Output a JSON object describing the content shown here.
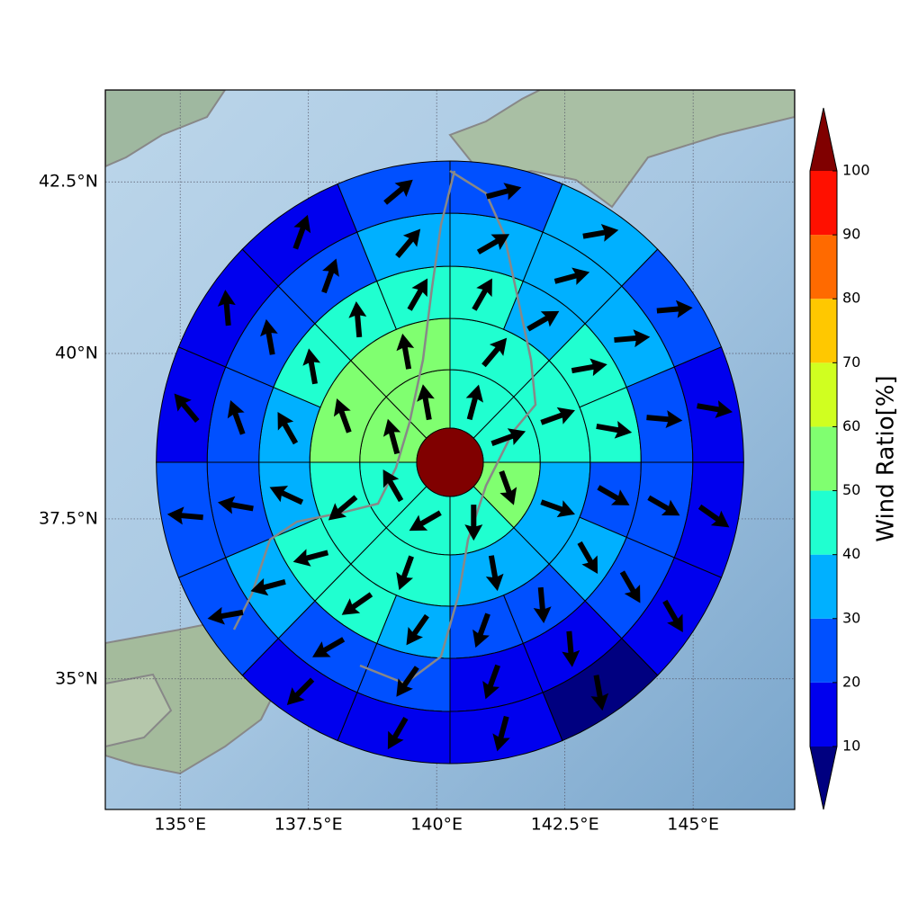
{
  "chart_data": {
    "type": "polar-grid-map",
    "projection": "mercator",
    "xlim": [
      133.54,
      146.98
    ],
    "ylim": [
      32.9,
      43.8
    ],
    "xticks": [
      {
        "value": 135,
        "label": "135°E"
      },
      {
        "value": 137.5,
        "label": "137.5°E"
      },
      {
        "value": 140,
        "label": "140°E"
      },
      {
        "value": 142.5,
        "label": "142.5°E"
      },
      {
        "value": 145,
        "label": "145°E"
      }
    ],
    "yticks": [
      {
        "value": 35,
        "label": "35°N"
      },
      {
        "value": 37.5,
        "label": "37.5°N"
      },
      {
        "value": 40,
        "label": "40°N"
      },
      {
        "value": 42.5,
        "label": "42.5°N"
      }
    ],
    "grid": true,
    "center_color": "#800000",
    "rings": [
      {
        "values": [
          45,
          45,
          55,
          45,
          45,
          45,
          55,
          55
        ],
        "directions": [
          15,
          70,
          160,
          180,
          240,
          330,
          345,
          350
        ]
      },
      {
        "values": [
          45,
          45,
          35,
          35,
          45,
          45,
          55,
          55
        ],
        "directions": [
          40,
          70,
          110,
          170,
          200,
          230,
          340,
          350
        ]
      },
      {
        "values": [
          45,
          35,
          45,
          45,
          25,
          35,
          25,
          25,
          35,
          45,
          45,
          35,
          35,
          45,
          45,
          45
        ],
        "directions": [
          30,
          60,
          80,
          100,
          120,
          150,
          175,
          200,
          215,
          235,
          255,
          295,
          330,
          350,
          355,
          30
        ]
      },
      {
        "values": [
          35,
          35,
          35,
          25,
          25,
          25,
          15,
          15,
          25,
          25,
          35,
          25,
          25,
          25,
          25,
          35
        ],
        "directions": [
          60,
          75,
          85,
          95,
          120,
          150,
          175,
          200,
          215,
          240,
          255,
          280,
          340,
          350,
          20,
          40
        ]
      },
      {
        "values": [
          25,
          35,
          25,
          15,
          15,
          15,
          5,
          15,
          15,
          15,
          25,
          25,
          15,
          15,
          15,
          25
        ],
        "directions": [
          75,
          80,
          85,
          100,
          125,
          150,
          170,
          195,
          210,
          225,
          260,
          275,
          320,
          355,
          20,
          50
        ]
      }
    ],
    "colorbar": {
      "label": "Wind Ratio[%]",
      "levels": [
        10,
        20,
        30,
        40,
        50,
        60,
        70,
        80,
        90,
        100
      ],
      "colors": [
        "#0000ee",
        "#0050ff",
        "#00b0ff",
        "#20ffd0",
        "#80ff70",
        "#d0ff20",
        "#ffc800",
        "#ff6a00",
        "#ff1000"
      ],
      "under": "#000080",
      "over": "#800000"
    }
  }
}
